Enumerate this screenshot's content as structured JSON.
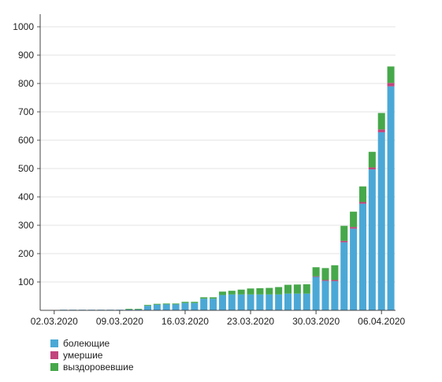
{
  "chart_data": {
    "type": "bar",
    "stacked": true,
    "x": [
      "01.03.2020",
      "02.03.2020",
      "03.03.2020",
      "04.03.2020",
      "05.03.2020",
      "06.03.2020",
      "07.03.2020",
      "08.03.2020",
      "09.03.2020",
      "10.03.2020",
      "11.03.2020",
      "12.03.2020",
      "13.03.2020",
      "14.03.2020",
      "15.03.2020",
      "16.03.2020",
      "17.03.2020",
      "18.03.2020",
      "19.03.2020",
      "20.03.2020",
      "21.03.2020",
      "22.03.2020",
      "23.03.2020",
      "24.03.2020",
      "25.03.2020",
      "26.03.2020",
      "27.03.2020",
      "28.03.2020",
      "29.03.2020",
      "30.03.2020",
      "31.03.2020",
      "01.04.2020",
      "02.04.2020",
      "03.04.2020",
      "04.04.2020",
      "05.04.2020",
      "06.04.2020",
      "07.04.2020"
    ],
    "x_ticks": [
      "02.03.2020",
      "09.03.2020",
      "16.03.2020",
      "23.03.2020",
      "30.03.2020",
      "06.04.2020"
    ],
    "series": [
      {
        "name": "болеющие",
        "color": "#4ba8d6",
        "values": [
          0,
          0,
          2,
          2,
          2,
          2,
          2,
          2,
          2,
          3,
          3,
          16,
          20,
          21,
          21,
          26,
          26,
          41,
          41,
          54,
          56,
          56,
          56,
          56,
          56,
          56,
          59,
          59,
          59,
          118,
          104,
          103,
          240,
          288,
          376,
          497,
          628,
          790
        ]
      },
      {
        "name": "умершие",
        "color": "#c2457c",
        "values": [
          0,
          0,
          0,
          0,
          0,
          0,
          0,
          0,
          0,
          0,
          0,
          0,
          0,
          0,
          0,
          0,
          0,
          0,
          0,
          0,
          0,
          0,
          0,
          0,
          0,
          0,
          0,
          0,
          0,
          2,
          3,
          4,
          5,
          6,
          6,
          7,
          10,
          12
        ]
      },
      {
        "name": "выздоровевшие",
        "color": "#46a84a",
        "values": [
          0,
          0,
          0,
          0,
          0,
          0,
          0,
          0,
          0,
          1,
          1,
          3,
          3,
          3,
          3,
          4,
          4,
          5,
          5,
          12,
          13,
          17,
          21,
          22,
          23,
          26,
          31,
          32,
          33,
          32,
          42,
          52,
          53,
          54,
          55,
          55,
          58,
          58
        ]
      }
    ],
    "ylim": [
      0,
      1000
    ],
    "y_ticks": [
      100,
      200,
      300,
      400,
      500,
      600,
      700,
      800,
      900,
      1000
    ],
    "grid": true,
    "legend_position": "bottom-left"
  }
}
